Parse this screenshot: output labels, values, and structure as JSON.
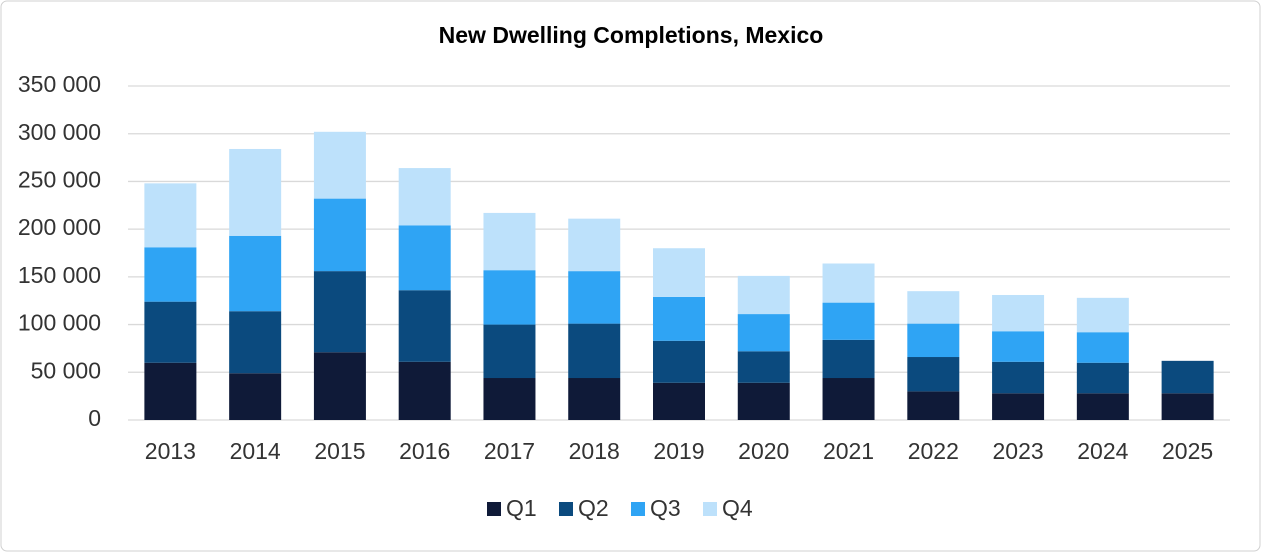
{
  "chart_data": {
    "type": "stacked_bar",
    "title": "New Dwelling Completions, Mexico",
    "categories": [
      "2013",
      "2014",
      "2015",
      "2016",
      "2017",
      "2018",
      "2019",
      "2020",
      "2021",
      "2022",
      "2023",
      "2024",
      "2025"
    ],
    "series": [
      {
        "name": "Q1",
        "color": "#0f1a38",
        "values": [
          60000,
          49000,
          71000,
          61000,
          44000,
          44000,
          39000,
          39000,
          44000,
          30000,
          28000,
          28000,
          28000
        ]
      },
      {
        "name": "Q2",
        "color": "#0b4a7e",
        "values": [
          64000,
          65000,
          85000,
          75000,
          56000,
          57000,
          44000,
          33000,
          40000,
          36000,
          33000,
          32000,
          34000
        ]
      },
      {
        "name": "Q3",
        "color": "#2fa4f4",
        "values": [
          57000,
          79000,
          76000,
          68000,
          57000,
          55000,
          46000,
          39000,
          39000,
          35000,
          32000,
          32000,
          null
        ]
      },
      {
        "name": "Q4",
        "color": "#bde1fb",
        "values": [
          67000,
          91000,
          70000,
          60000,
          60000,
          55000,
          51000,
          40000,
          41000,
          34000,
          38000,
          36000,
          null
        ]
      }
    ],
    "ylim": [
      0,
      350000
    ],
    "yticks": [
      0,
      {
        "value": 50000,
        "label": "50 000"
      },
      {
        "value": 100000,
        "label": "100 000"
      },
      {
        "value": 150000,
        "label": "150 000"
      },
      {
        "value": 200000,
        "label": "200 000"
      },
      {
        "value": 250000,
        "label": "250 000"
      },
      {
        "value": 300000,
        "label": "300 000"
      },
      {
        "value": 350000,
        "label": "350 000"
      }
    ],
    "grid": true,
    "legend": "bottom"
  }
}
